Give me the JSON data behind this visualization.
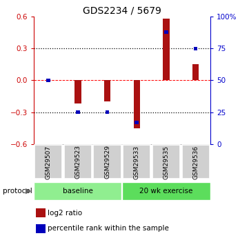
{
  "title": "GDS2234 / 5679",
  "samples": [
    "GSM29507",
    "GSM29523",
    "GSM29529",
    "GSM29533",
    "GSM29535",
    "GSM29536"
  ],
  "log2_ratio": [
    0.0,
    -0.22,
    -0.2,
    -0.45,
    0.58,
    0.15
  ],
  "percentile_rank": [
    50,
    25,
    25,
    17,
    88,
    75
  ],
  "ylim_left": [
    -0.6,
    0.6
  ],
  "ylim_right": [
    0,
    100
  ],
  "yticks_left": [
    -0.6,
    -0.3,
    0.0,
    0.3,
    0.6
  ],
  "yticks_right": [
    0,
    25,
    50,
    75,
    100
  ],
  "ytick_labels_right": [
    "0",
    "25",
    "50",
    "75",
    "100%"
  ],
  "hlines": [
    -0.3,
    0.0,
    0.3
  ],
  "hline_styles": [
    "dotted",
    "dashed",
    "dotted"
  ],
  "hline_colors": [
    "black",
    "red",
    "black"
  ],
  "bar_color": "#aa1111",
  "dot_color": "#0000bb",
  "bar_width": 0.22,
  "protocol_labels": [
    "baseline",
    "20 wk exercise"
  ],
  "protocol_ranges": [
    [
      0,
      3
    ],
    [
      3,
      6
    ]
  ],
  "protocol_colors": [
    "#90ee90",
    "#5cdd5c"
  ],
  "legend_items": [
    "log2 ratio",
    "percentile rank within the sample"
  ],
  "legend_colors": [
    "#aa1111",
    "#0000bb"
  ],
  "background_color": "#ffffff",
  "tick_label_color_left": "#cc0000",
  "tick_label_color_right": "#0000cc",
  "title_fontsize": 10,
  "axis_fontsize": 7.5,
  "legend_fontsize": 7.5
}
